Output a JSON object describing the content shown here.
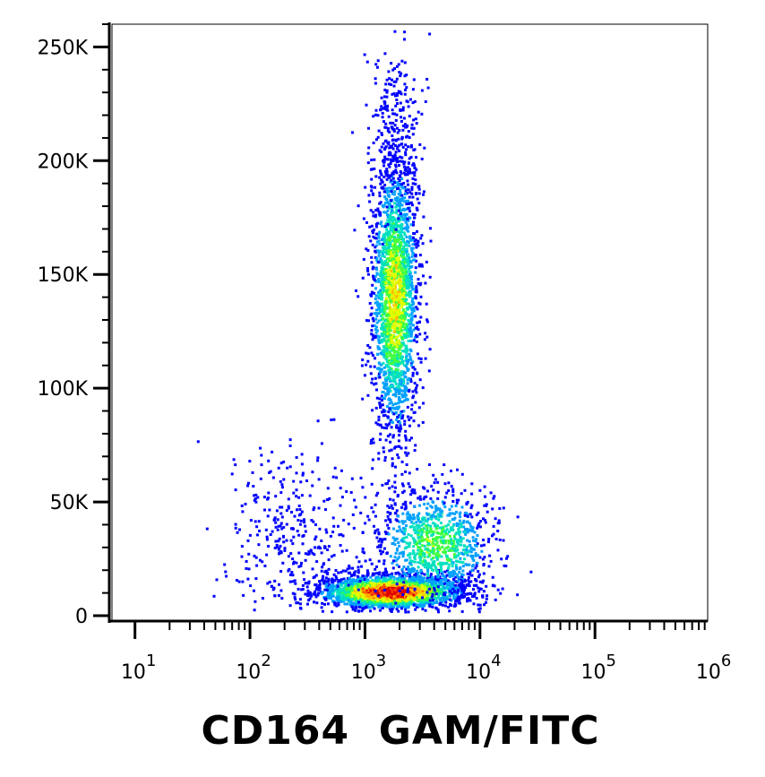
{
  "chart_data": {
    "type": "scatter",
    "subtype": "flow-cytometry-density-dot-plot",
    "title": "",
    "xlabel": "CD164  GAM/FITC",
    "ylabel": "",
    "x_scale": "log",
    "x_ticks": [
      {
        "base": "10",
        "exp": "1",
        "value": 10
      },
      {
        "base": "10",
        "exp": "2",
        "value": 100
      },
      {
        "base": "10",
        "exp": "3",
        "value": 1000
      },
      {
        "base": "10",
        "exp": "4",
        "value": 10000
      },
      {
        "base": "10",
        "exp": "5",
        "value": 100000
      },
      {
        "base": "10",
        "exp": "6",
        "value": 1000000
      }
    ],
    "y_ticks": [
      {
        "label": "0",
        "value": 0
      },
      {
        "label": "50K",
        "value": 50000
      },
      {
        "label": "100K",
        "value": 100000
      },
      {
        "label": "150K",
        "value": 150000
      },
      {
        "label": "200K",
        "value": 200000
      },
      {
        "label": "250K",
        "value": 250000
      }
    ],
    "xlim_log10": [
      0.8,
      5.98
    ],
    "ylim": [
      0,
      260000
    ],
    "grid": false,
    "density_colors": [
      "#0000ff",
      "#00a0ff",
      "#00e0c0",
      "#40ff40",
      "#e0ff00",
      "#ffc000",
      "#ff5000",
      "#e00000"
    ],
    "populations": [
      {
        "center_log10x": 3.22,
        "center_y": 11000,
        "sd_log10x": 0.3,
        "sd_y": 3500,
        "count": 2600,
        "peak_density": 1.0
      },
      {
        "center_log10x": 3.25,
        "center_y": 140000,
        "sd_log10x": 0.1,
        "sd_y": 30000,
        "count": 2200,
        "peak_density": 0.62
      },
      {
        "center_log10x": 3.6,
        "center_y": 32000,
        "sd_log10x": 0.25,
        "sd_y": 12000,
        "count": 1000,
        "peak_density": 0.45
      },
      {
        "center_log10x": 2.4,
        "center_y": 35000,
        "sd_log10x": 0.3,
        "sd_y": 20000,
        "count": 350,
        "peak_density": 0.05
      },
      {
        "center_log10x": 3.25,
        "center_y": 215000,
        "sd_log10x": 0.12,
        "sd_y": 20000,
        "count": 250,
        "peak_density": 0.1
      }
    ]
  }
}
